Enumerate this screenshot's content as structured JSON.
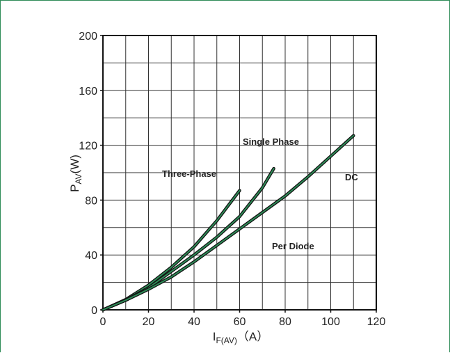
{
  "chart_data": {
    "type": "line",
    "xlabel_main": "I",
    "xlabel_sub": "F(AV)",
    "xlabel_unit": "（A）",
    "ylabel_main": "P",
    "ylabel_sub": "AV",
    "ylabel_unit": "(W)",
    "xlim": [
      0,
      120
    ],
    "ylim": [
      0,
      200
    ],
    "xticks": [
      0,
      20,
      40,
      60,
      80,
      100,
      120
    ],
    "yticks": [
      0,
      40,
      80,
      120,
      160,
      200
    ],
    "grid": true,
    "annotations": [
      "Single Phase",
      "Three-Phase",
      "DC",
      "Per Diode"
    ],
    "series": [
      {
        "label": "Three-Phase",
        "x": [
          0,
          10,
          20,
          30,
          40,
          50,
          60
        ],
        "y": [
          0,
          7.5,
          18,
          31,
          46,
          65,
          87
        ]
      },
      {
        "label": "Single Phase",
        "x": [
          0,
          10,
          20,
          30,
          40,
          50,
          60,
          70,
          75
        ],
        "y": [
          0,
          7,
          16,
          28,
          40,
          53,
          68,
          89,
          103
        ]
      },
      {
        "label": "DC",
        "x": [
          0,
          10,
          20,
          30,
          40,
          50,
          60,
          70,
          80,
          90,
          100,
          110
        ],
        "y": [
          0,
          7,
          15,
          24,
          35,
          47,
          59,
          71,
          83,
          97,
          112,
          127
        ]
      }
    ]
  }
}
